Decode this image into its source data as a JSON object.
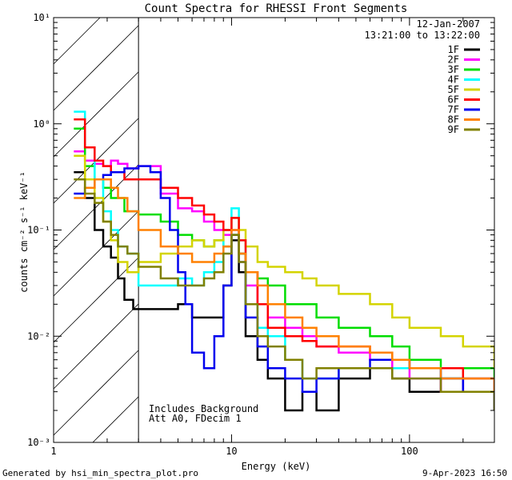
{
  "chart_data": {
    "type": "line",
    "title": "Count Spectra for RHESSI Front Segments",
    "xlabel": "Energy (keV)",
    "ylabel": "counts cm⁻² s⁻¹ keV⁻¹",
    "xscale": "log",
    "yscale": "log",
    "xlim": [
      1,
      300
    ],
    "ylim": [
      0.001,
      10
    ],
    "x_ticks": [
      {
        "value": 1,
        "label": "1"
      },
      {
        "value": 10,
        "label": "10"
      },
      {
        "value": 100,
        "label": "100"
      }
    ],
    "y_ticks": [
      {
        "value": 0.001,
        "label": "10⁻³"
      },
      {
        "value": 0.01,
        "label": "10⁻²"
      },
      {
        "value": 0.1,
        "label": "10⁻¹"
      },
      {
        "value": 1,
        "label": "10⁰"
      },
      {
        "value": 10,
        "label": "10¹"
      }
    ],
    "date": "12-Jan-2007",
    "time_range": "13:21:00 to 13:22:00",
    "shaded_region": {
      "x_from": 1,
      "x_to": 3,
      "style": "diagonal hatch"
    },
    "annotation_lines": [
      "Includes Background",
      "Att A0, FDecim 1"
    ],
    "series": [
      {
        "name": "1F",
        "color": "#000000",
        "points": [
          [
            1.3,
            0.35
          ],
          [
            1.5,
            0.2
          ],
          [
            1.7,
            0.1
          ],
          [
            1.9,
            0.07
          ],
          [
            2.1,
            0.055
          ],
          [
            2.3,
            0.035
          ],
          [
            2.5,
            0.022
          ],
          [
            2.8,
            0.018
          ],
          [
            3,
            0.018
          ],
          [
            4,
            0.018
          ],
          [
            5,
            0.02
          ],
          [
            6,
            0.015
          ],
          [
            8,
            0.015
          ],
          [
            9,
            0.03
          ],
          [
            10,
            0.08
          ],
          [
            11,
            0.04
          ],
          [
            12,
            0.01
          ],
          [
            14,
            0.006
          ],
          [
            16,
            0.004
          ],
          [
            20,
            0.002
          ],
          [
            25,
            0.003
          ],
          [
            30,
            0.002
          ],
          [
            40,
            0.004
          ],
          [
            60,
            0.005
          ],
          [
            80,
            0.004
          ],
          [
            100,
            0.003
          ],
          [
            150,
            0.004
          ],
          [
            200,
            0.003
          ],
          [
            300,
            0.002
          ]
        ]
      },
      {
        "name": "2F",
        "color": "#ff00ff",
        "points": [
          [
            1.3,
            0.55
          ],
          [
            1.5,
            0.45
          ],
          [
            1.7,
            0.42
          ],
          [
            1.9,
            0.4
          ],
          [
            2.1,
            0.45
          ],
          [
            2.3,
            0.42
          ],
          [
            2.6,
            0.38
          ],
          [
            3,
            0.4
          ],
          [
            4,
            0.22
          ],
          [
            5,
            0.16
          ],
          [
            6,
            0.15
          ],
          [
            7,
            0.12
          ],
          [
            8,
            0.1
          ],
          [
            9,
            0.09
          ],
          [
            10,
            0.1
          ],
          [
            11,
            0.06
          ],
          [
            12,
            0.03
          ],
          [
            14,
            0.02
          ],
          [
            16,
            0.015
          ],
          [
            20,
            0.012
          ],
          [
            25,
            0.01
          ],
          [
            30,
            0.008
          ],
          [
            40,
            0.007
          ],
          [
            60,
            0.006
          ],
          [
            80,
            0.005
          ],
          [
            100,
            0.004
          ],
          [
            150,
            0.003
          ],
          [
            200,
            0.004
          ],
          [
            300,
            0.003
          ]
        ]
      },
      {
        "name": "3F",
        "color": "#00dd00",
        "points": [
          [
            1.3,
            0.9
          ],
          [
            1.5,
            0.4
          ],
          [
            1.7,
            0.3
          ],
          [
            1.9,
            0.25
          ],
          [
            2.1,
            0.2
          ],
          [
            2.5,
            0.15
          ],
          [
            3,
            0.14
          ],
          [
            4,
            0.12
          ],
          [
            5,
            0.09
          ],
          [
            6,
            0.08
          ],
          [
            7,
            0.07
          ],
          [
            8,
            0.08
          ],
          [
            9,
            0.07
          ],
          [
            10,
            0.09
          ],
          [
            11,
            0.06
          ],
          [
            12,
            0.04
          ],
          [
            14,
            0.035
          ],
          [
            16,
            0.03
          ],
          [
            20,
            0.02
          ],
          [
            25,
            0.02
          ],
          [
            30,
            0.015
          ],
          [
            40,
            0.012
          ],
          [
            60,
            0.01
          ],
          [
            80,
            0.008
          ],
          [
            100,
            0.006
          ],
          [
            150,
            0.005
          ],
          [
            200,
            0.005
          ],
          [
            300,
            0.004
          ]
        ]
      },
      {
        "name": "4F",
        "color": "#00ffff",
        "points": [
          [
            1.3,
            1.3
          ],
          [
            1.5,
            0.6
          ],
          [
            1.7,
            0.3
          ],
          [
            1.9,
            0.15
          ],
          [
            2.1,
            0.1
          ],
          [
            2.3,
            0.07
          ],
          [
            2.6,
            0.06
          ],
          [
            3,
            0.03
          ],
          [
            4,
            0.03
          ],
          [
            5,
            0.035
          ],
          [
            6,
            0.03
          ],
          [
            7,
            0.04
          ],
          [
            8,
            0.05
          ],
          [
            9,
            0.1
          ],
          [
            10,
            0.16
          ],
          [
            11,
            0.08
          ],
          [
            12,
            0.02
          ],
          [
            14,
            0.012
          ],
          [
            16,
            0.01
          ],
          [
            20,
            0.006
          ],
          [
            25,
            0.004
          ],
          [
            30,
            0.004
          ],
          [
            40,
            0.005
          ],
          [
            60,
            0.005
          ],
          [
            80,
            0.005
          ],
          [
            100,
            0.005
          ],
          [
            150,
            0.004
          ],
          [
            200,
            0.004
          ],
          [
            300,
            0.003
          ]
        ]
      },
      {
        "name": "5F",
        "color": "#d4d400",
        "points": [
          [
            1.3,
            0.5
          ],
          [
            1.5,
            0.3
          ],
          [
            1.7,
            0.2
          ],
          [
            1.9,
            0.12
          ],
          [
            2.1,
            0.08
          ],
          [
            2.3,
            0.05
          ],
          [
            2.6,
            0.04
          ],
          [
            3,
            0.05
          ],
          [
            4,
            0.06
          ],
          [
            5,
            0.07
          ],
          [
            6,
            0.08
          ],
          [
            7,
            0.07
          ],
          [
            8,
            0.08
          ],
          [
            9,
            0.1
          ],
          [
            10,
            0.13
          ],
          [
            11,
            0.1
          ],
          [
            12,
            0.07
          ],
          [
            14,
            0.05
          ],
          [
            16,
            0.045
          ],
          [
            20,
            0.04
          ],
          [
            25,
            0.035
          ],
          [
            30,
            0.03
          ],
          [
            40,
            0.025
          ],
          [
            60,
            0.02
          ],
          [
            80,
            0.015
          ],
          [
            100,
            0.012
          ],
          [
            150,
            0.01
          ],
          [
            200,
            0.008
          ],
          [
            300,
            0.005
          ]
        ]
      },
      {
        "name": "6F",
        "color": "#ff0000",
        "points": [
          [
            1.3,
            1.1
          ],
          [
            1.5,
            0.6
          ],
          [
            1.7,
            0.45
          ],
          [
            1.9,
            0.4
          ],
          [
            2.1,
            0.35
          ],
          [
            2.5,
            0.3
          ],
          [
            3,
            0.3
          ],
          [
            4,
            0.25
          ],
          [
            5,
            0.2
          ],
          [
            6,
            0.17
          ],
          [
            7,
            0.14
          ],
          [
            8,
            0.12
          ],
          [
            9,
            0.1
          ],
          [
            10,
            0.13
          ],
          [
            11,
            0.08
          ],
          [
            12,
            0.04
          ],
          [
            14,
            0.02
          ],
          [
            16,
            0.012
          ],
          [
            20,
            0.01
          ],
          [
            25,
            0.009
          ],
          [
            30,
            0.008
          ],
          [
            40,
            0.008
          ],
          [
            60,
            0.007
          ],
          [
            80,
            0.006
          ],
          [
            100,
            0.005
          ],
          [
            150,
            0.005
          ],
          [
            200,
            0.004
          ],
          [
            300,
            0.003
          ]
        ]
      },
      {
        "name": "7F",
        "color": "#0000ee",
        "points": [
          [
            1.3,
            0.22
          ],
          [
            1.5,
            0.25
          ],
          [
            1.7,
            0.3
          ],
          [
            1.9,
            0.33
          ],
          [
            2.1,
            0.35
          ],
          [
            2.5,
            0.38
          ],
          [
            3,
            0.4
          ],
          [
            3.5,
            0.35
          ],
          [
            4,
            0.2
          ],
          [
            4.5,
            0.1
          ],
          [
            5,
            0.04
          ],
          [
            5.5,
            0.02
          ],
          [
            6,
            0.007
          ],
          [
            7,
            0.005
          ],
          [
            8,
            0.01
          ],
          [
            9,
            0.03
          ],
          [
            10,
            0.09
          ],
          [
            11,
            0.05
          ],
          [
            12,
            0.015
          ],
          [
            14,
            0.008
          ],
          [
            16,
            0.005
          ],
          [
            20,
            0.004
          ],
          [
            25,
            0.003
          ],
          [
            30,
            0.004
          ],
          [
            40,
            0.005
          ],
          [
            60,
            0.006
          ],
          [
            80,
            0.006
          ],
          [
            100,
            0.005
          ],
          [
            150,
            0.004
          ],
          [
            200,
            0.003
          ],
          [
            300,
            0.002
          ]
        ]
      },
      {
        "name": "8F",
        "color": "#ff8000",
        "points": [
          [
            1.3,
            0.2
          ],
          [
            1.5,
            0.25
          ],
          [
            1.7,
            0.3
          ],
          [
            1.9,
            0.3
          ],
          [
            2.1,
            0.25
          ],
          [
            2.3,
            0.2
          ],
          [
            2.6,
            0.15
          ],
          [
            3,
            0.1
          ],
          [
            4,
            0.07
          ],
          [
            5,
            0.06
          ],
          [
            6,
            0.05
          ],
          [
            7,
            0.05
          ],
          [
            8,
            0.06
          ],
          [
            9,
            0.07
          ],
          [
            10,
            0.1
          ],
          [
            11,
            0.06
          ],
          [
            12,
            0.04
          ],
          [
            14,
            0.03
          ],
          [
            16,
            0.02
          ],
          [
            20,
            0.015
          ],
          [
            25,
            0.012
          ],
          [
            30,
            0.01
          ],
          [
            40,
            0.008
          ],
          [
            60,
            0.007
          ],
          [
            80,
            0.006
          ],
          [
            100,
            0.005
          ],
          [
            150,
            0.004
          ],
          [
            200,
            0.004
          ],
          [
            300,
            0.003
          ]
        ]
      },
      {
        "name": "9F",
        "color": "#808000",
        "points": [
          [
            1.3,
            0.3
          ],
          [
            1.5,
            0.22
          ],
          [
            1.7,
            0.18
          ],
          [
            1.9,
            0.12
          ],
          [
            2.1,
            0.09
          ],
          [
            2.3,
            0.07
          ],
          [
            2.6,
            0.06
          ],
          [
            3,
            0.045
          ],
          [
            4,
            0.035
          ],
          [
            5,
            0.03
          ],
          [
            6,
            0.03
          ],
          [
            7,
            0.035
          ],
          [
            8,
            0.04
          ],
          [
            9,
            0.06
          ],
          [
            10,
            0.09
          ],
          [
            11,
            0.05
          ],
          [
            12,
            0.02
          ],
          [
            14,
            0.01
          ],
          [
            16,
            0.008
          ],
          [
            20,
            0.006
          ],
          [
            25,
            0.004
          ],
          [
            30,
            0.005
          ],
          [
            40,
            0.005
          ],
          [
            60,
            0.005
          ],
          [
            80,
            0.004
          ],
          [
            100,
            0.004
          ],
          [
            150,
            0.003
          ],
          [
            200,
            0.003
          ],
          [
            300,
            0.002
          ]
        ]
      }
    ]
  },
  "footer": {
    "left": "Generated by hsi_min_spectra_plot.pro",
    "right": "9-Apr-2023 16:50"
  }
}
